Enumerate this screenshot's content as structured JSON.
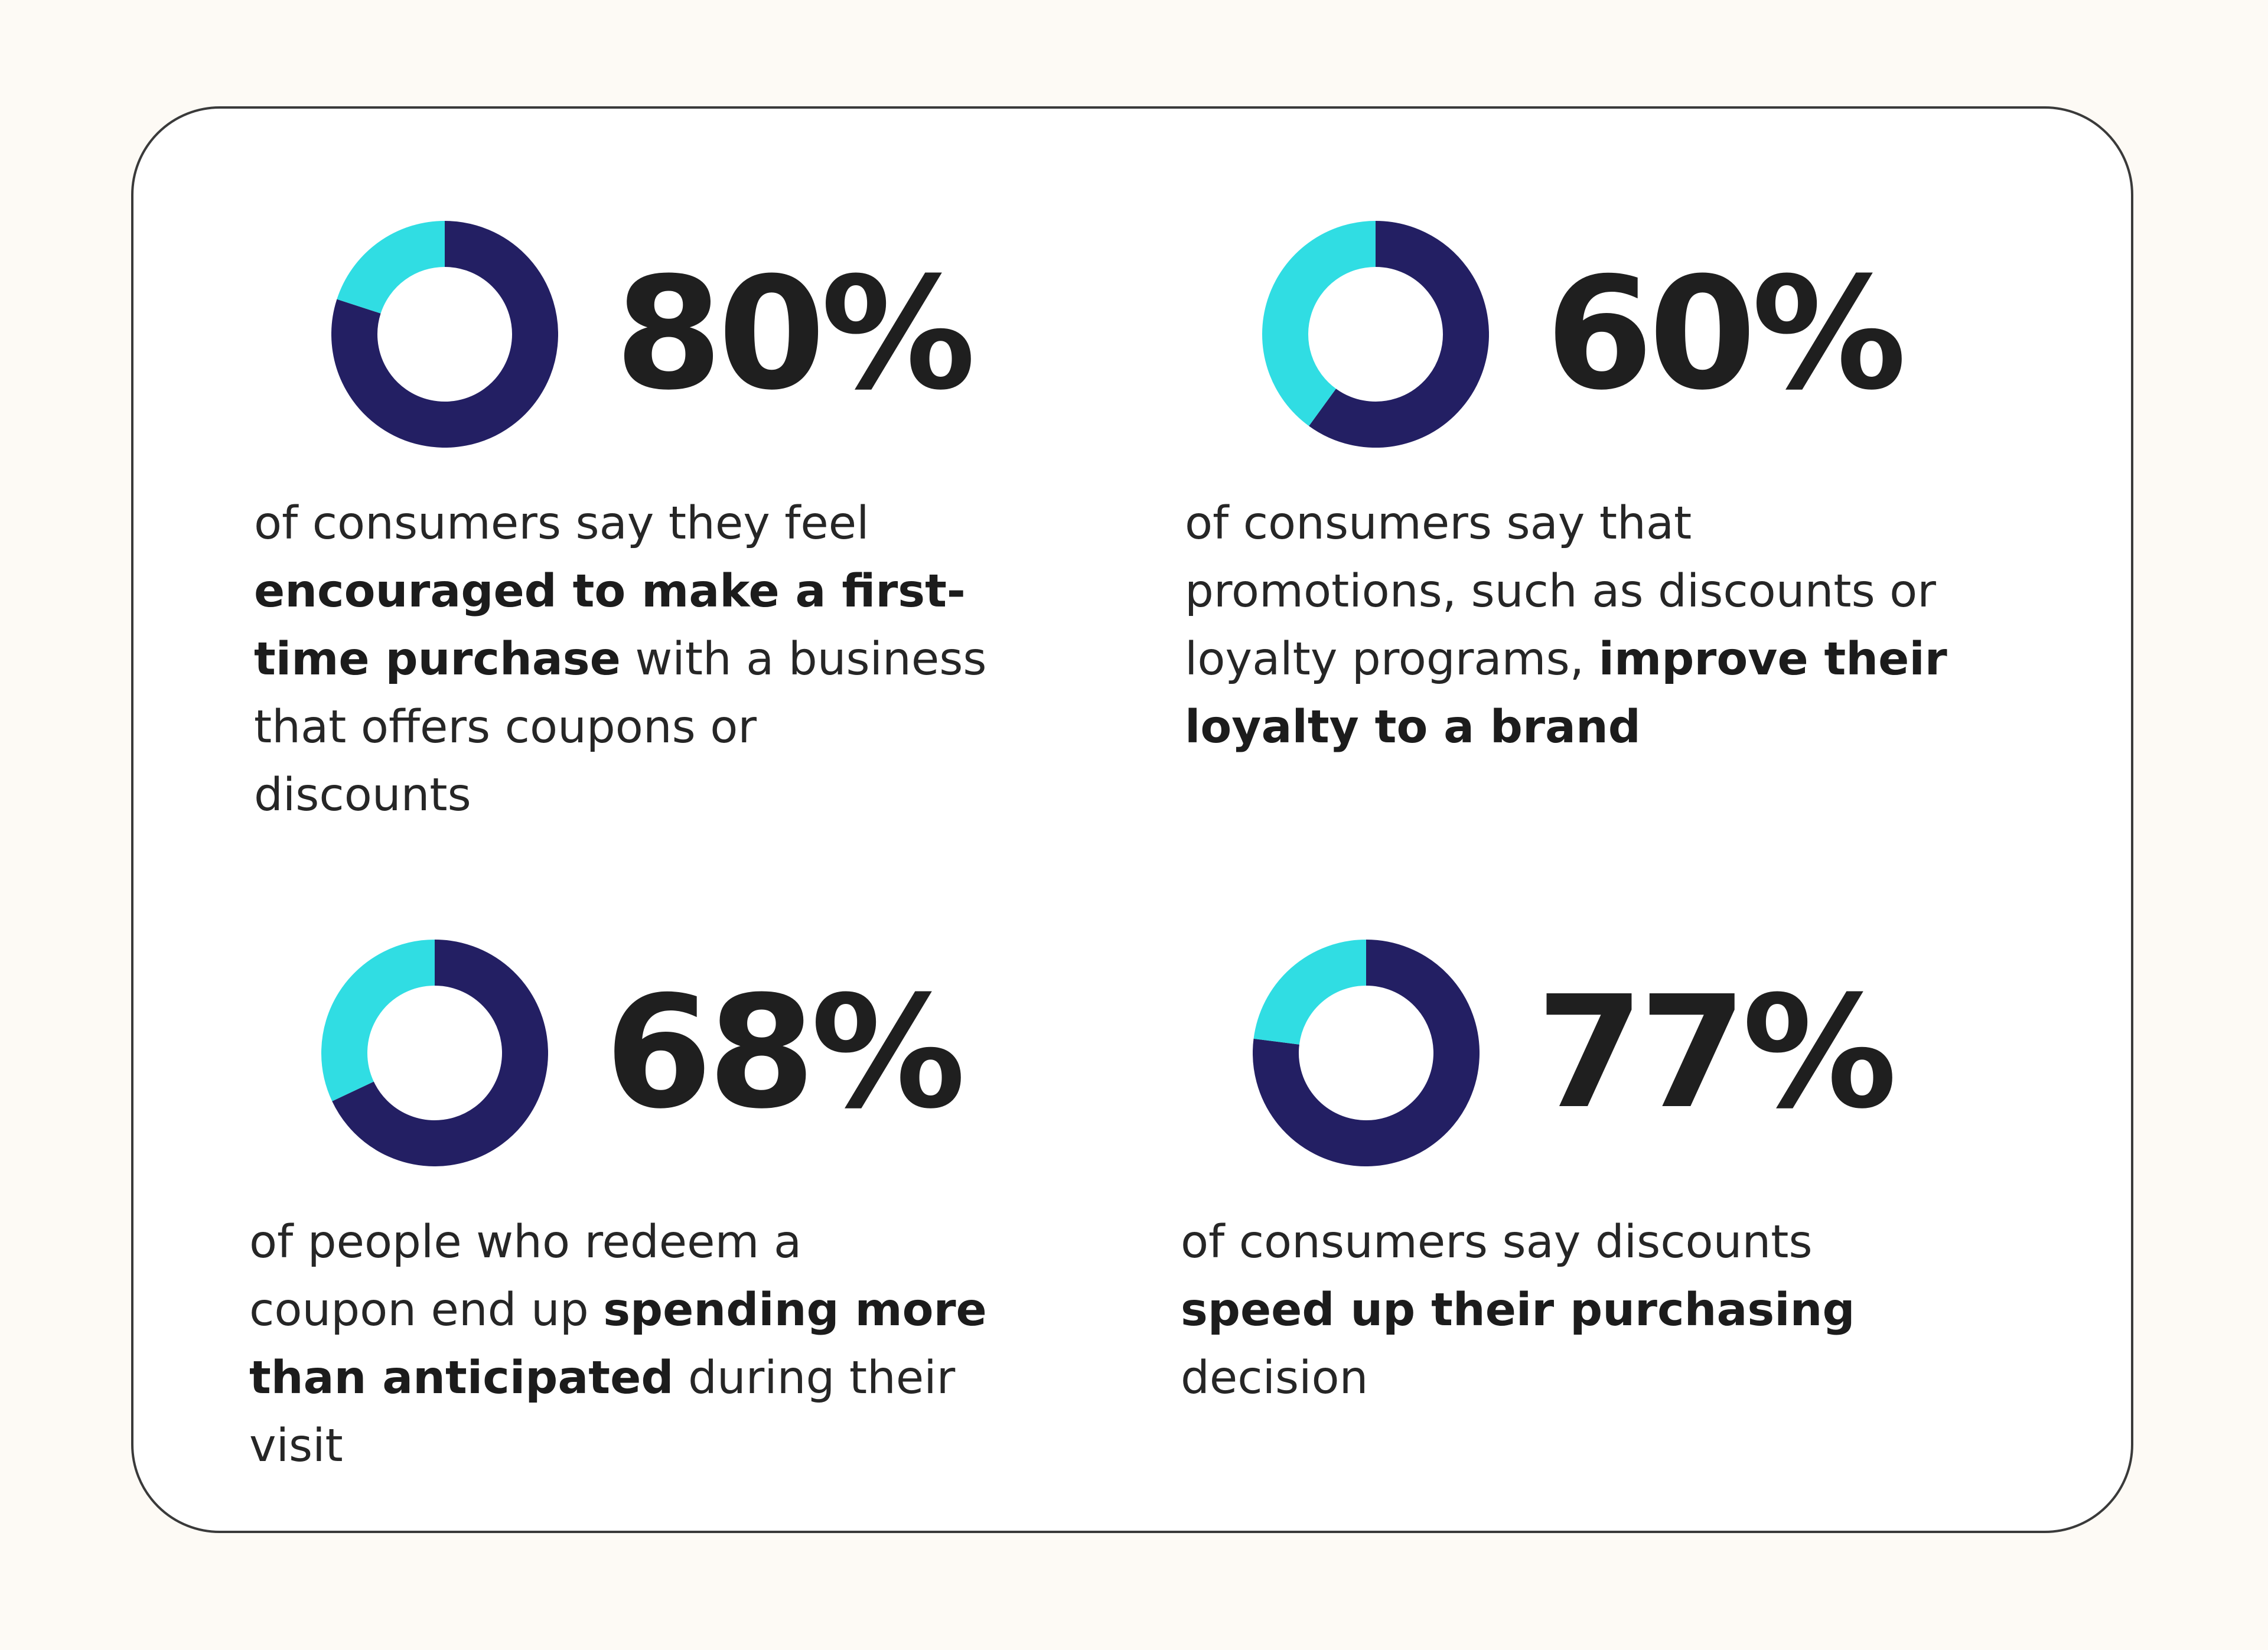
{
  "colors": {
    "primary": "#231f63",
    "accent": "#30dde3",
    "text": "#262626",
    "background": "#fdfaf5",
    "card": "#ffffff"
  },
  "chart_data": [
    {
      "type": "pie",
      "style": "donut",
      "label": "80%",
      "values": [
        80,
        20
      ],
      "description": {
        "lines": [
          [
            {
              "text": "of consumers say they feel",
              "bold": false
            }
          ],
          [
            {
              "text": "encouraged to make a first-",
              "bold": true
            }
          ],
          [
            {
              "text": "time purchase",
              "bold": true
            },
            {
              "text": " with a business",
              "bold": false
            }
          ],
          [
            {
              "text": "that offers coupons or",
              "bold": false
            }
          ],
          [
            {
              "text": "discounts",
              "bold": false
            }
          ]
        ]
      }
    },
    {
      "type": "pie",
      "style": "donut",
      "label": "60%",
      "values": [
        60,
        40
      ],
      "description": {
        "lines": [
          [
            {
              "text": "of consumers say that",
              "bold": false
            }
          ],
          [
            {
              "text": "promotions, such as discounts or",
              "bold": false
            }
          ],
          [
            {
              "text": "loyalty programs, ",
              "bold": false
            },
            {
              "text": "improve their",
              "bold": true
            }
          ],
          [
            {
              "text": "loyalty to a brand",
              "bold": true
            }
          ]
        ]
      }
    },
    {
      "type": "pie",
      "style": "donut",
      "label": "68%",
      "values": [
        68,
        32
      ],
      "description": {
        "lines": [
          [
            {
              "text": "of people who redeem a",
              "bold": false
            }
          ],
          [
            {
              "text": "coupon end up ",
              "bold": false
            },
            {
              "text": "spending more",
              "bold": true
            }
          ],
          [
            {
              "text": "than anticipated",
              "bold": true
            },
            {
              "text": " during their",
              "bold": false
            }
          ],
          [
            {
              "text": "visit",
              "bold": false
            }
          ]
        ]
      }
    },
    {
      "type": "pie",
      "style": "donut",
      "label": "77%",
      "values": [
        77,
        23
      ],
      "description": {
        "lines": [
          [
            {
              "text": "of consumers say discounts",
              "bold": false
            }
          ],
          [
            {
              "text": "speed up their purchasing",
              "bold": true
            }
          ],
          [
            {
              "text": "decision",
              "bold": false
            }
          ]
        ]
      }
    }
  ]
}
